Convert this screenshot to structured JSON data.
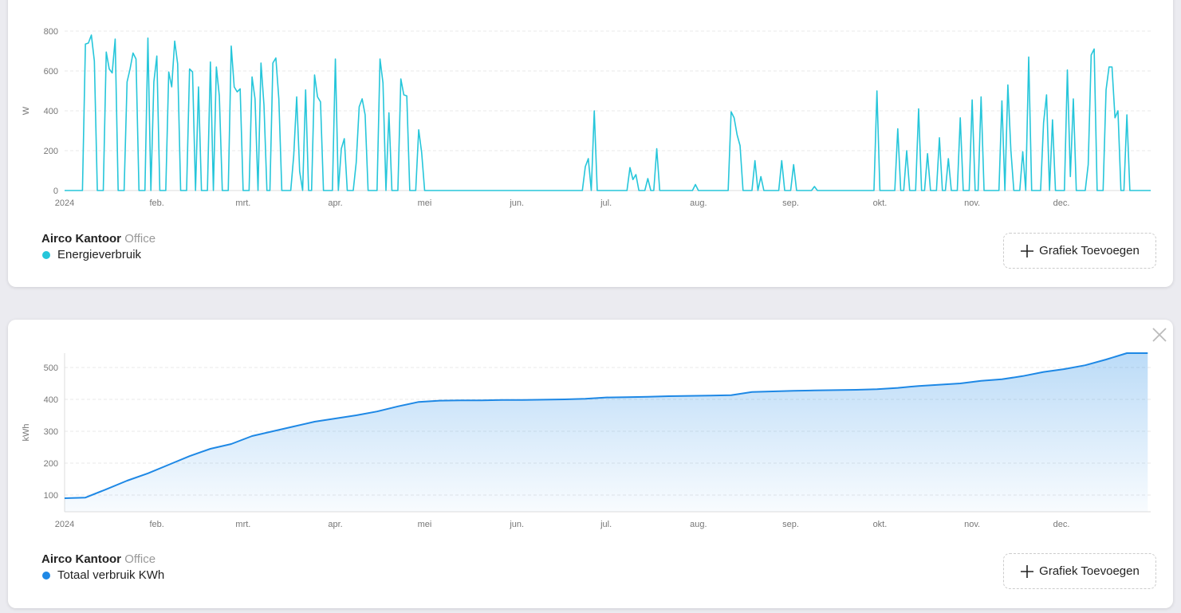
{
  "chart_data": [
    {
      "type": "line",
      "device": "Airco Kantoor",
      "location": "Office",
      "button": "Grafiek Toevoegen",
      "ylabel": "W",
      "ylim": [
        0,
        800
      ],
      "yticks": [
        0,
        200,
        400,
        600,
        800
      ],
      "grid": true,
      "xlim": [
        0,
        365
      ],
      "xticks": [
        {
          "value": 0,
          "label": "2024"
        },
        {
          "value": 31,
          "label": "feb."
        },
        {
          "value": 60,
          "label": "mrt."
        },
        {
          "value": 91,
          "label": "apr."
        },
        {
          "value": 121,
          "label": "mei"
        },
        {
          "value": 152,
          "label": "jun."
        },
        {
          "value": 182,
          "label": "jul."
        },
        {
          "value": 213,
          "label": "aug."
        },
        {
          "value": 244,
          "label": "sep."
        },
        {
          "value": 274,
          "label": "okt."
        },
        {
          "value": 305,
          "label": "nov."
        },
        {
          "value": 335,
          "label": "dec."
        }
      ],
      "x": [
        0,
        1,
        2,
        3,
        4,
        5,
        6,
        7,
        8,
        9,
        10,
        11,
        12,
        13,
        14,
        15,
        16,
        17,
        18,
        19,
        20,
        21,
        22,
        23,
        24,
        25,
        26,
        27,
        28,
        29,
        30,
        31,
        32,
        33,
        34,
        35,
        36,
        37,
        38,
        39,
        40,
        41,
        42,
        43,
        44,
        45,
        46,
        47,
        48,
        49,
        50,
        51,
        52,
        53,
        54,
        55,
        56,
        57,
        58,
        59,
        60,
        61,
        62,
        63,
        64,
        65,
        66,
        67,
        68,
        69,
        70,
        71,
        72,
        73,
        74,
        75,
        76,
        77,
        78,
        79,
        80,
        81,
        82,
        83,
        84,
        85,
        86,
        87,
        88,
        89,
        90,
        91,
        92,
        93,
        94,
        95,
        96,
        97,
        98,
        99,
        100,
        101,
        102,
        103,
        104,
        105,
        106,
        107,
        108,
        109,
        110,
        111,
        112,
        113,
        114,
        115,
        116,
        117,
        118,
        119,
        120,
        121,
        122,
        123,
        124,
        125,
        126,
        127,
        128,
        129,
        130,
        131,
        132,
        133,
        134,
        135,
        136,
        137,
        138,
        139,
        140,
        141,
        142,
        143,
        144,
        145,
        146,
        147,
        148,
        149,
        150,
        151,
        152,
        153,
        154,
        155,
        156,
        157,
        158,
        159,
        160,
        161,
        162,
        163,
        164,
        165,
        166,
        167,
        168,
        169,
        170,
        171,
        172,
        173,
        174,
        175,
        176,
        177,
        178,
        179,
        180,
        181,
        182,
        183,
        184,
        185,
        186,
        187,
        188,
        189,
        190,
        191,
        192,
        193,
        194,
        195,
        196,
        197,
        198,
        199,
        200,
        201,
        202,
        203,
        204,
        205,
        206,
        207,
        208,
        209,
        210,
        211,
        212,
        213,
        214,
        215,
        216,
        217,
        218,
        219,
        220,
        221,
        222,
        223,
        224,
        225,
        226,
        227,
        228,
        229,
        230,
        231,
        232,
        233,
        234,
        235,
        236,
        237,
        238,
        239,
        240,
        241,
        242,
        243,
        244,
        245,
        246,
        247,
        248,
        249,
        250,
        251,
        252,
        253,
        254,
        255,
        256,
        257,
        258,
        259,
        260,
        261,
        262,
        263,
        264,
        265,
        266,
        267,
        268,
        269,
        270,
        271,
        272,
        273,
        274,
        275,
        276,
        277,
        278,
        279,
        280,
        281,
        282,
        283,
        284,
        285,
        286,
        287,
        288,
        289,
        290,
        291,
        292,
        293,
        294,
        295,
        296,
        297,
        298,
        299,
        300,
        301,
        302,
        303,
        304,
        305,
        306,
        307,
        308,
        309,
        310,
        311,
        312,
        313,
        314,
        315,
        316,
        317,
        318,
        319,
        320,
        321,
        322,
        323,
        324,
        325,
        326,
        327,
        328,
        329,
        330,
        331,
        332,
        333,
        334,
        335,
        336,
        337,
        338,
        339,
        340,
        341,
        342,
        343,
        344,
        345,
        346,
        347,
        348,
        349,
        350,
        351,
        352,
        353,
        354,
        355,
        356,
        357,
        358,
        359,
        360,
        361,
        362,
        363,
        364,
        365
      ],
      "series": [
        {
          "name": "Energieverbruik",
          "color": "#26c6da",
          "values": [
            0,
            0,
            0,
            0,
            0,
            0,
            0,
            735,
            740,
            780,
            650,
            0,
            0,
            0,
            695,
            610,
            590,
            760,
            0,
            0,
            0,
            545,
            610,
            690,
            660,
            0,
            0,
            0,
            765,
            0,
            545,
            675,
            0,
            0,
            0,
            595,
            520,
            750,
            635,
            0,
            0,
            0,
            610,
            595,
            0,
            520,
            0,
            0,
            0,
            645,
            0,
            620,
            475,
            0,
            0,
            0,
            725,
            520,
            495,
            510,
            0,
            0,
            0,
            570,
            460,
            0,
            640,
            430,
            0,
            0,
            640,
            665,
            460,
            0,
            0,
            0,
            0,
            175,
            470,
            95,
            0,
            505,
            0,
            0,
            580,
            470,
            445,
            0,
            0,
            0,
            0,
            660,
            0,
            210,
            260,
            0,
            0,
            0,
            140,
            420,
            460,
            380,
            0,
            0,
            0,
            0,
            660,
            540,
            0,
            390,
            0,
            0,
            0,
            560,
            480,
            475,
            0,
            0,
            0,
            305,
            190,
            0,
            0,
            0,
            0,
            0,
            0,
            0,
            0,
            0,
            0,
            0,
            0,
            0,
            0,
            0,
            0,
            0,
            0,
            0,
            0,
            0,
            0,
            0,
            0,
            0,
            0,
            0,
            0,
            0,
            0,
            0,
            0,
            0,
            0,
            0,
            0,
            0,
            0,
            0,
            0,
            0,
            0,
            0,
            0,
            0,
            0,
            0,
            0,
            0,
            0,
            0,
            0,
            0,
            0,
            120,
            160,
            0,
            400,
            0,
            0,
            0,
            0,
            0,
            0,
            0,
            0,
            0,
            0,
            0,
            115,
            55,
            80,
            0,
            0,
            0,
            60,
            0,
            0,
            210,
            0,
            0,
            0,
            0,
            0,
            0,
            0,
            0,
            0,
            0,
            0,
            0,
            30,
            0,
            0,
            0,
            0,
            0,
            0,
            0,
            0,
            0,
            0,
            0,
            395,
            365,
            280,
            225,
            0,
            0,
            0,
            0,
            150,
            0,
            70,
            0,
            0,
            0,
            0,
            0,
            0,
            150,
            0,
            0,
            0,
            130,
            0,
            0,
            0,
            0,
            0,
            0,
            20,
            0,
            0,
            0,
            0,
            0,
            0,
            0,
            0,
            0,
            0,
            0,
            0,
            0,
            0,
            0,
            0,
            0,
            0,
            0,
            0,
            500,
            0,
            0,
            0,
            0,
            0,
            0,
            310,
            0,
            0,
            200,
            0,
            0,
            0,
            410,
            0,
            0,
            185,
            0,
            0,
            0,
            265,
            0,
            0,
            160,
            0,
            0,
            0,
            365,
            0,
            0,
            0,
            455,
            0,
            0,
            470,
            0,
            0,
            0,
            0,
            0,
            0,
            450,
            0,
            530,
            205,
            0,
            0,
            0,
            195,
            0,
            670,
            0,
            0,
            0,
            0,
            340,
            480,
            0,
            355,
            0,
            0,
            0,
            0,
            605,
            70,
            460,
            0,
            0,
            0,
            0,
            130,
            680,
            710,
            0,
            0,
            0,
            505,
            620,
            620,
            365,
            400,
            0,
            0,
            380,
            0,
            0,
            0,
            0,
            0,
            0,
            0,
            0
          ]
        }
      ]
    },
    {
      "type": "area",
      "device": "Airco Kantoor",
      "location": "Office",
      "button": "Grafiek Toevoegen",
      "ylabel": "kWh",
      "ylim": [
        47.5,
        545
      ],
      "yticks": [
        100,
        200,
        300,
        400,
        500
      ],
      "grid": true,
      "xlim": [
        0,
        365
      ],
      "xticks": [
        {
          "value": 0,
          "label": "2024"
        },
        {
          "value": 31,
          "label": "feb."
        },
        {
          "value": 60,
          "label": "mrt."
        },
        {
          "value": 91,
          "label": "apr."
        },
        {
          "value": 121,
          "label": "mei"
        },
        {
          "value": 152,
          "label": "jun."
        },
        {
          "value": 182,
          "label": "jul."
        },
        {
          "value": 213,
          "label": "aug."
        },
        {
          "value": 244,
          "label": "sep."
        },
        {
          "value": 274,
          "label": "okt."
        },
        {
          "value": 305,
          "label": "nov."
        },
        {
          "value": 335,
          "label": "dec."
        }
      ],
      "x": [
        0,
        7,
        14,
        21,
        28,
        35,
        42,
        49,
        56,
        63,
        70,
        77,
        84,
        91,
        98,
        105,
        112,
        119,
        126,
        133,
        140,
        147,
        154,
        161,
        168,
        175,
        182,
        189,
        196,
        203,
        210,
        217,
        224,
        231,
        238,
        245,
        252,
        259,
        266,
        273,
        280,
        287,
        294,
        301,
        308,
        315,
        322,
        329,
        336,
        343,
        350,
        357,
        364
      ],
      "series": [
        {
          "name": "Totaal verbruik KWh",
          "color": "#1e88e5",
          "values": [
            90,
            92,
            118,
            145,
            168,
            195,
            222,
            245,
            260,
            285,
            300,
            315,
            330,
            340,
            350,
            362,
            378,
            392,
            396,
            397,
            397,
            398,
            398,
            399,
            400,
            402,
            406,
            407,
            408,
            410,
            411,
            412,
            413,
            423,
            425,
            427,
            428,
            429,
            430,
            432,
            436,
            442,
            446,
            450,
            458,
            463,
            473,
            486,
            495,
            507,
            525,
            545,
            545
          ]
        }
      ]
    }
  ]
}
